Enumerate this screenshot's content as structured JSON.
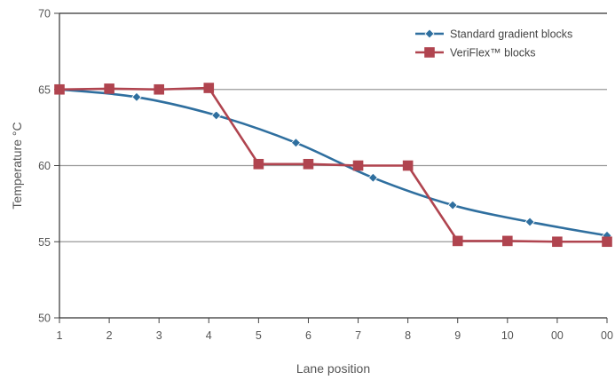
{
  "chart_data": {
    "type": "line",
    "title": "",
    "xlabel": "Lane position",
    "ylabel": "Temperature °C",
    "x_tick_labels": [
      "1",
      "2",
      "3",
      "4",
      "5",
      "6",
      "7",
      "8",
      "9",
      "10",
      "00",
      "00"
    ],
    "ylim": [
      50,
      70
    ],
    "y_ticks": [
      50,
      55,
      60,
      65,
      70
    ],
    "grid": "horizontal",
    "legend_position": "top-right",
    "series": [
      {
        "name": "Standard gradient blocks",
        "color": "#2f6f9f",
        "marker": "diamond",
        "points": [
          {
            "x": 1.0,
            "y": 65.0
          },
          {
            "x": 2.55,
            "y": 64.5
          },
          {
            "x": 4.15,
            "y": 63.3
          },
          {
            "x": 5.75,
            "y": 61.5
          },
          {
            "x": 7.3,
            "y": 59.2
          },
          {
            "x": 8.9,
            "y": 57.4
          },
          {
            "x": 10.45,
            "y": 56.3
          },
          {
            "x": 12.0,
            "y": 55.4
          }
        ]
      },
      {
        "name": "VeriFlex™ blocks",
        "color": "#b0444f",
        "marker": "square",
        "points": [
          {
            "x": 1,
            "y": 65.0
          },
          {
            "x": 2,
            "y": 65.05
          },
          {
            "x": 3,
            "y": 65.0
          },
          {
            "x": 4,
            "y": 65.1
          },
          {
            "x": 5,
            "y": 60.1
          },
          {
            "x": 6,
            "y": 60.1
          },
          {
            "x": 7,
            "y": 60.0
          },
          {
            "x": 8,
            "y": 60.0
          },
          {
            "x": 9,
            "y": 55.05
          },
          {
            "x": 10,
            "y": 55.05
          },
          {
            "x": 11,
            "y": 55.0
          },
          {
            "x": 12,
            "y": 55.0
          }
        ]
      }
    ]
  }
}
